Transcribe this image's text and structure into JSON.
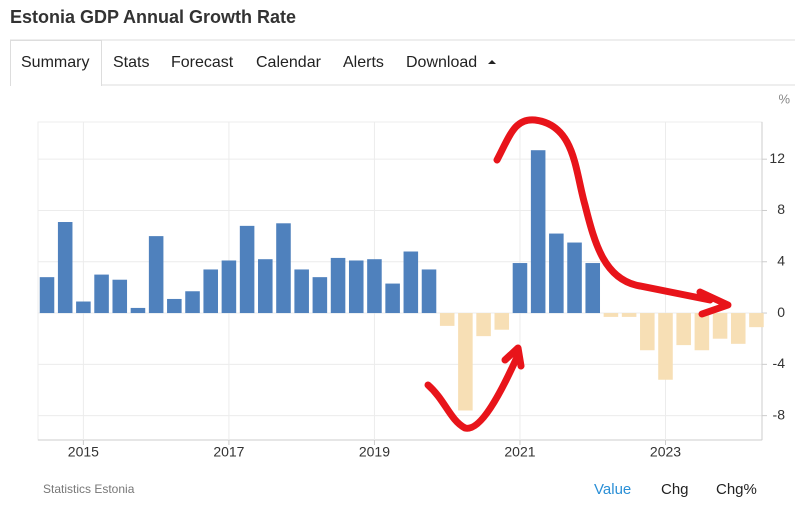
{
  "header": {
    "title": "Estonia GDP Annual Growth Rate"
  },
  "tabs": [
    "Summary",
    "Stats",
    "Forecast",
    "Calendar",
    "Alerts",
    "Download"
  ],
  "chart_data": {
    "type": "bar",
    "unit": "%",
    "categories": [
      null,
      null,
      "2015",
      null,
      null,
      null,
      null,
      null,
      null,
      null,
      "2017",
      null,
      null,
      null,
      null,
      null,
      null,
      null,
      "2019",
      null,
      null,
      null,
      null,
      null,
      null,
      null,
      "2021",
      null,
      null,
      null,
      null,
      null,
      null,
      null,
      "2023",
      null,
      null,
      null,
      null,
      null
    ],
    "values": [
      2.8,
      7.1,
      0.9,
      3.0,
      2.6,
      0.4,
      6.0,
      1.1,
      1.7,
      3.4,
      4.1,
      6.8,
      4.2,
      7.0,
      3.4,
      2.8,
      4.3,
      4.1,
      4.2,
      2.3,
      4.8,
      3.4,
      -1.0,
      -7.6,
      -1.8,
      -1.3,
      3.9,
      12.7,
      6.2,
      5.5,
      3.9,
      -0.3,
      -0.3,
      -2.9,
      -5.2,
      -2.5,
      -2.9,
      -2.0,
      -2.4,
      -1.1
    ],
    "color": "#4f81bd",
    "negative_color": "#f7dfb5",
    "ylim": [
      -9.9,
      14.9
    ],
    "yticks": [
      -8,
      -4,
      0,
      4,
      8,
      12
    ],
    "grid": true,
    "source": "Statistics Estonia"
  },
  "footer_buttons": [
    "Value",
    "Chg",
    "Chg%"
  ]
}
